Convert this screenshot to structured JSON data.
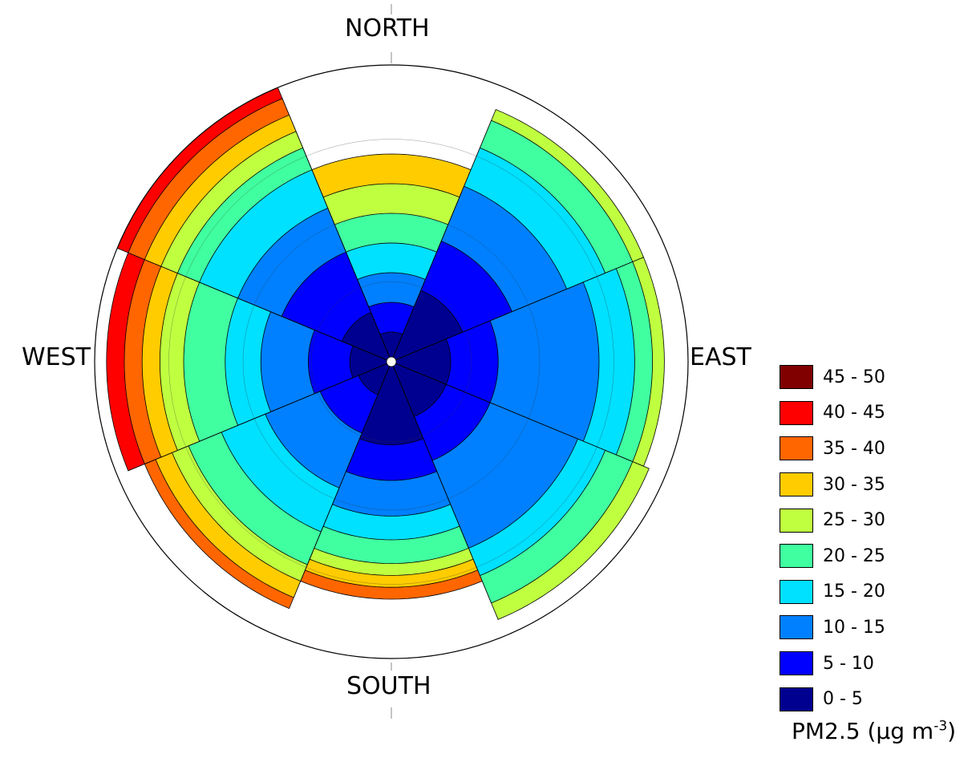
{
  "chart_data": {
    "type": "polar-contour",
    "directions": {
      "north": "NORTH",
      "east": "EAST",
      "south": "SOUTH",
      "west": "WEST"
    },
    "legend_title_prefix": "PM2.5 (",
    "legend_title_mu": "μ",
    "legend_title_g": "g m",
    "legend_title_exp": "-3",
    "legend_title_suffix": ")",
    "bins": [
      {
        "label": "45 - 50",
        "color": "#800000"
      },
      {
        "label": "40 - 45",
        "color": "#ff0000"
      },
      {
        "label": "35 - 40",
        "color": "#ff6600"
      },
      {
        "label": "30 - 35",
        "color": "#ffcc00"
      },
      {
        "label": "25 - 30",
        "color": "#bfff40"
      },
      {
        "label": "20 - 25",
        "color": "#40ffa0"
      },
      {
        "label": "15 - 20",
        "color": "#00e0ff"
      },
      {
        "label": "10 - 15",
        "color": "#0080ff"
      },
      {
        "label": "5 - 10",
        "color": "#0000ff"
      },
      {
        "label": "0 - 5",
        "color": "#000090"
      }
    ],
    "sectors": [
      {
        "dir": "NNE",
        "bounds": [
          5,
          10,
          15,
          20,
          25,
          30,
          35
        ]
      },
      {
        "dir": "ENE",
        "bounds": [
          13,
          22,
          32,
          39,
          44,
          46
        ]
      },
      {
        "dir": "ESE",
        "bounds": [
          10,
          18,
          35,
          41,
          44,
          46
        ]
      },
      {
        "dir": "SSE",
        "bounds": [
          10,
          18,
          34,
          39,
          44,
          47
        ]
      },
      {
        "dir": "SSW",
        "bounds": [
          14,
          20,
          26,
          30,
          34,
          36,
          38,
          40
        ]
      },
      {
        "dir": "WSW",
        "bounds": [
          6,
          13,
          23,
          31,
          37,
          40,
          43,
          45
        ]
      },
      {
        "dir": "WNW",
        "bounds": [
          7,
          14,
          22,
          28,
          35,
          39,
          42,
          45,
          48
        ]
      },
      {
        "dir": "NNW",
        "bounds": [
          9,
          20,
          28,
          35,
          39,
          42,
          45,
          48,
          50
        ]
      }
    ],
    "max_value": 50
  }
}
